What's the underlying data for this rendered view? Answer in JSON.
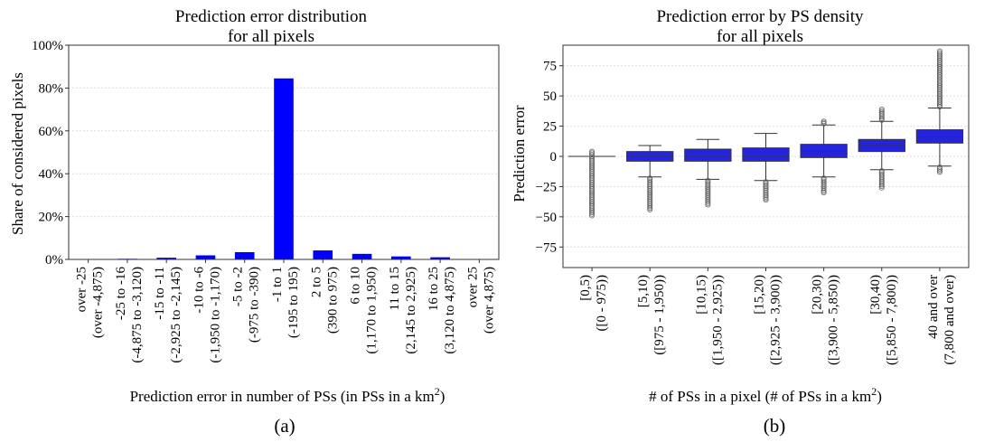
{
  "panel_labels": [
    "(a)",
    "(b)"
  ],
  "chart_data": [
    {
      "type": "bar",
      "title": [
        "Prediction error distribution",
        "for all pixels"
      ],
      "xlabel": "Prediction error in number of PSs (in PSs in a km",
      "xlabel_sup": "2",
      "xlabel_close": ")",
      "ylabel": "Share of considered pixels",
      "ylim": [
        0,
        100
      ],
      "yticks": [
        "0%",
        "20%",
        "40%",
        "60%",
        "80%",
        "100%"
      ],
      "grid": true,
      "color": "#0000ff",
      "categories": [
        [
          "over -25",
          "(over -4,875)"
        ],
        [
          "-25 to -16",
          "(-4,875 to -3,120)"
        ],
        [
          "-15 to -11",
          "(-2,925 to -2,145)"
        ],
        [
          "-10 to -6",
          "(-1,950 to -1,170)"
        ],
        [
          "-5 to -2",
          "(-975 to -390)"
        ],
        [
          "-1 to 1",
          "(-195 to 195)"
        ],
        [
          "2 to 5",
          "(390 to 975)"
        ],
        [
          "6 to 10",
          "(1,170 to 1,950)"
        ],
        [
          "11 to 15",
          "(2,145 to 2,925)"
        ],
        [
          "16 to 25",
          "(3,120 to 4,875)"
        ],
        [
          "over 25",
          "(over 4,875)"
        ]
      ],
      "values": [
        0.1,
        0.3,
        0.8,
        1.9,
        3.4,
        84.5,
        4.2,
        2.6,
        1.4,
        1.0,
        0.2
      ]
    },
    {
      "type": "box",
      "title": [
        "Prediction error by PS density",
        "for all pixels"
      ],
      "xlabel": "# of PSs in a pixel (# of PSs in a km",
      "xlabel_sup": "2",
      "xlabel_close": ")",
      "ylabel": "Prediction error",
      "ylim": [
        -92,
        92
      ],
      "yticks": [
        -75,
        -50,
        -25,
        0,
        25,
        50,
        75
      ],
      "grid": true,
      "color": "#2424e0",
      "categories": [
        [
          "[0,5)",
          "([0 - 975))"
        ],
        [
          "[5,10)",
          "([975 - 1,950))"
        ],
        [
          "[10,15)",
          "([1,950 - 2,925))"
        ],
        [
          "[15,20)",
          "([2,925 - 3,900))"
        ],
        [
          "[20,30)",
          "([3,900 - 5,850))"
        ],
        [
          "[30,40)",
          "([5,850 - 7,800))"
        ],
        [
          "40 and over",
          "(7,800 and over)"
        ]
      ],
      "boxes": [
        {
          "whislo": 0,
          "q1": 0,
          "med": 0,
          "q3": 0,
          "whishi": 0,
          "fliers_low": [
            -49,
            4
          ]
        },
        {
          "whislo": -17,
          "q1": -4,
          "med": 0,
          "q3": 4,
          "whishi": 9,
          "fliers_low": [
            -44,
            -18
          ]
        },
        {
          "whislo": -19,
          "q1": -4,
          "med": 0,
          "q3": 6,
          "whishi": 14,
          "fliers_low": [
            -40,
            -20
          ]
        },
        {
          "whislo": -20,
          "q1": -4,
          "med": 0,
          "q3": 7,
          "whishi": 19,
          "fliers_low": [
            -36,
            -21
          ]
        },
        {
          "whislo": -17,
          "q1": -1,
          "med": 4,
          "q3": 10,
          "whishi": 26,
          "fliers_low": [
            -30,
            -18
          ],
          "fliers_high": [
            27,
            29
          ]
        },
        {
          "whislo": -11,
          "q1": 4,
          "med": 9,
          "q3": 14,
          "whishi": 29,
          "fliers_low": [
            -26,
            -12
          ],
          "fliers_high": [
            30,
            39
          ]
        },
        {
          "whislo": -8,
          "q1": 11,
          "med": 16,
          "q3": 22,
          "whishi": 40,
          "fliers_low": [
            -13,
            -9
          ],
          "fliers_high": [
            41,
            87
          ]
        }
      ]
    }
  ]
}
